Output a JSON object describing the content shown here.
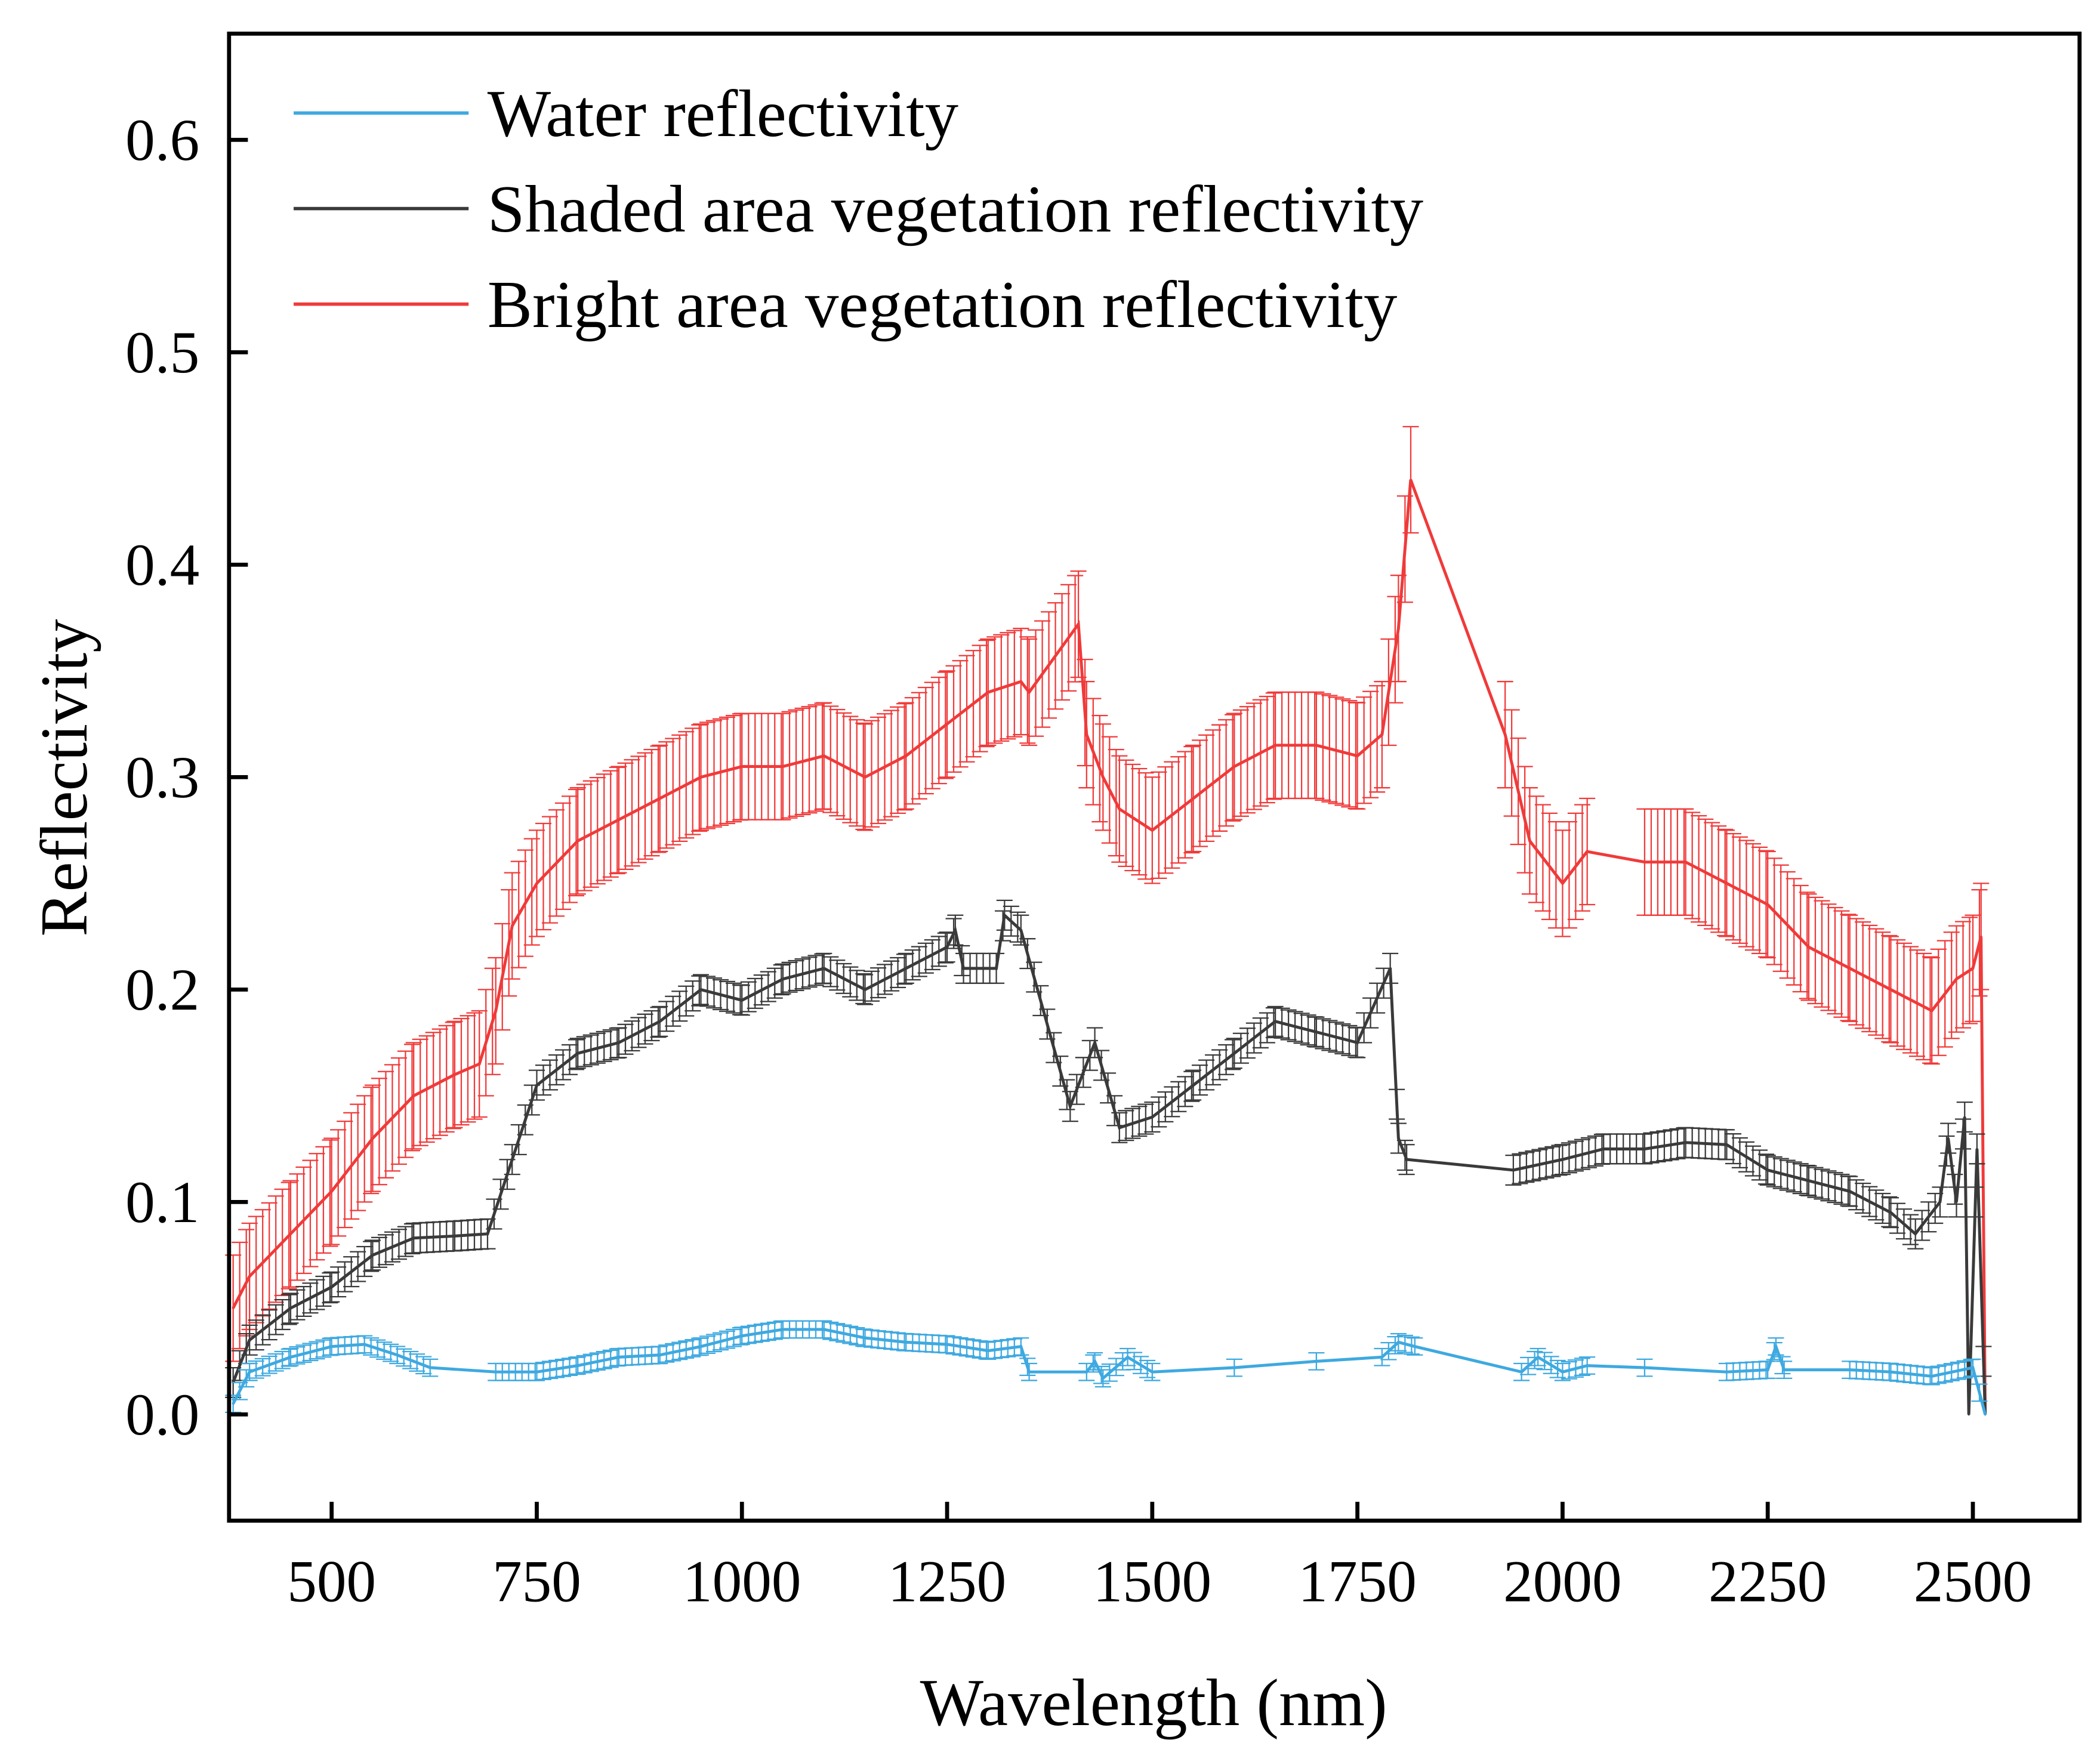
{
  "chart_data": {
    "type": "line",
    "xlabel": "Wavelength (nm)",
    "ylabel": "Reflectivity",
    "xlim": [
      375,
      2630
    ],
    "ylim": [
      -0.05,
      0.65
    ],
    "xticks": [
      500,
      750,
      1000,
      1250,
      1500,
      1750,
      2000,
      2250,
      2500
    ],
    "yticks": [
      0.0,
      0.1,
      0.2,
      0.3,
      0.4,
      0.5,
      0.6
    ],
    "ytick_labels": [
      "0.0",
      "0.1",
      "0.2",
      "0.3",
      "0.4",
      "0.5",
      "0.6"
    ],
    "grid": false,
    "legend_position": "top-left",
    "series": [
      {
        "name": "Water reflectivity",
        "color": "#3ea9e0",
        "error": 0.004,
        "x": [
          380,
          400,
          450,
          500,
          540,
          580,
          620,
          700,
          750,
          800,
          850,
          900,
          950,
          1000,
          1050,
          1100,
          1150,
          1200,
          1250,
          1300,
          1340,
          1350,
          1420,
          1430,
          1440,
          1470,
          1500,
          1600,
          1700,
          1780,
          1800,
          1820,
          1950,
          1970,
          2000,
          2030,
          2100,
          2200,
          2250,
          2260,
          2270,
          2350,
          2400,
          2450,
          2500,
          2515
        ],
        "y": [
          0.005,
          0.02,
          0.027,
          0.032,
          0.033,
          0.028,
          0.022,
          0.02,
          0.02,
          0.023,
          0.027,
          0.028,
          0.032,
          0.037,
          0.04,
          0.04,
          0.036,
          0.034,
          0.033,
          0.03,
          0.032,
          0.02,
          0.02,
          0.025,
          0.017,
          0.027,
          0.02,
          0.022,
          0.025,
          0.027,
          0.034,
          0.032,
          0.02,
          0.027,
          0.02,
          0.023,
          0.022,
          0.02,
          0.021,
          0.032,
          0.021,
          0.021,
          0.02,
          0.018,
          0.022,
          0.0
        ]
      },
      {
        "name": "Shaded area vegetation reflectivity",
        "color": "#3a3a3a",
        "error": 0.007,
        "x": [
          380,
          400,
          450,
          500,
          550,
          600,
          650,
          690,
          720,
          750,
          800,
          850,
          900,
          950,
          1000,
          1050,
          1100,
          1150,
          1200,
          1250,
          1260,
          1270,
          1310,
          1320,
          1340,
          1400,
          1430,
          1460,
          1500,
          1550,
          1600,
          1650,
          1700,
          1750,
          1790,
          1800,
          1810,
          1940,
          2000,
          2050,
          2100,
          2150,
          2200,
          2250,
          2300,
          2350,
          2400,
          2430,
          2460,
          2470,
          2480,
          2490,
          2495,
          2505,
          2515
        ],
        "y": [
          0.015,
          0.035,
          0.05,
          0.06,
          0.075,
          0.083,
          0.084,
          0.085,
          0.12,
          0.155,
          0.17,
          0.175,
          0.185,
          0.2,
          0.195,
          0.205,
          0.21,
          0.2,
          0.21,
          0.22,
          0.228,
          0.21,
          0.21,
          0.235,
          0.228,
          0.145,
          0.175,
          0.135,
          0.14,
          0.155,
          0.17,
          0.185,
          0.18,
          0.175,
          0.21,
          0.13,
          0.12,
          0.115,
          0.12,
          0.125,
          0.125,
          0.128,
          0.127,
          0.115,
          0.11,
          0.105,
          0.095,
          0.085,
          0.1,
          0.13,
          0.1,
          0.14,
          0.0,
          0.125,
          0.0
        ]
      },
      {
        "name": "Bright area vegetation reflectivity",
        "color": "#f03a3a",
        "error": 0.025,
        "x": [
          380,
          400,
          450,
          500,
          550,
          600,
          650,
          680,
          700,
          720,
          750,
          800,
          850,
          900,
          950,
          1000,
          1050,
          1100,
          1150,
          1200,
          1250,
          1300,
          1340,
          1350,
          1410,
          1420,
          1440,
          1460,
          1500,
          1550,
          1600,
          1650,
          1700,
          1750,
          1780,
          1800,
          1815,
          1930,
          1960,
          2000,
          2030,
          2100,
          2150,
          2200,
          2250,
          2300,
          2350,
          2400,
          2450,
          2480,
          2500,
          2510,
          2515
        ],
        "y": [
          0.05,
          0.065,
          0.085,
          0.105,
          0.13,
          0.15,
          0.16,
          0.165,
          0.19,
          0.23,
          0.25,
          0.27,
          0.28,
          0.29,
          0.3,
          0.305,
          0.305,
          0.31,
          0.3,
          0.31,
          0.325,
          0.34,
          0.345,
          0.34,
          0.372,
          0.32,
          0.3,
          0.285,
          0.275,
          0.29,
          0.305,
          0.315,
          0.315,
          0.31,
          0.32,
          0.37,
          0.44,
          0.32,
          0.27,
          0.25,
          0.265,
          0.26,
          0.26,
          0.25,
          0.24,
          0.22,
          0.21,
          0.2,
          0.19,
          0.205,
          0.21,
          0.225,
          0.0
        ]
      }
    ]
  }
}
